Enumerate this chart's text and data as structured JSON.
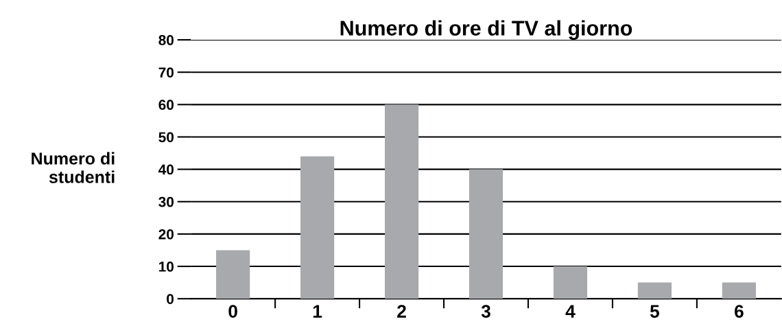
{
  "chart_data": {
    "type": "bar",
    "title": "Numero di ore di TV al giorno",
    "ylabel": "Numero di\nstudenti",
    "categories": [
      "0",
      "1",
      "2",
      "3",
      "4",
      "5",
      "6"
    ],
    "values": [
      15,
      44,
      60,
      40,
      10,
      5,
      5
    ],
    "color": "#a7a9ac",
    "ylim": [
      0,
      80
    ],
    "yticks": [
      0,
      10,
      20,
      30,
      40,
      50,
      60,
      70,
      80
    ],
    "grid": "y",
    "legend": false
  }
}
